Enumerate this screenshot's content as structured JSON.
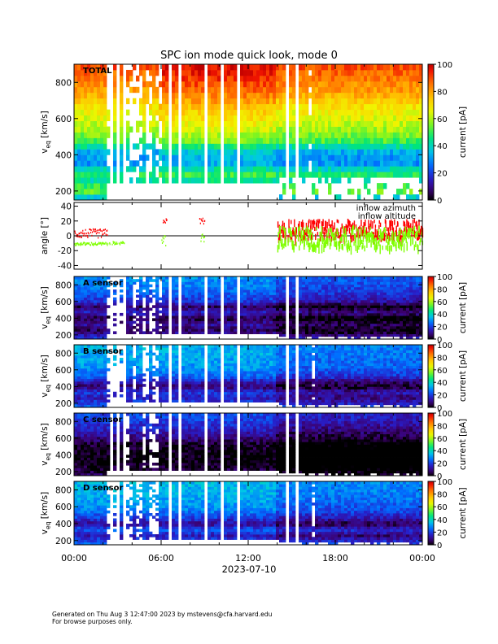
{
  "chart_data": {
    "type": "heatmap",
    "title": "SPC ion mode quick look, mode 0",
    "xlabel": "2023-07-10",
    "x_ticks": [
      "00:00",
      "06:00",
      "12:00",
      "18:00",
      "00:00"
    ],
    "x_range_hours": [
      0,
      24
    ],
    "panels": [
      {
        "name": "TOTAL",
        "kind": "spectrogram",
        "ylabel": "v_eq [km/s]",
        "ylabel_main": "v",
        "ylabel_sub": "eq",
        "ylabel_unit": " [km/s]",
        "ylim": [
          150,
          900
        ],
        "y_ticks": [
          200,
          400,
          600,
          800
        ],
        "colorbar_label": "current [pA]",
        "colorbar_range": [
          0,
          100
        ],
        "colorbar_ticks": [
          0,
          20,
          40,
          60,
          80,
          100
        ],
        "base_bands": [
          [
            150,
            30
          ],
          [
            200,
            55
          ],
          [
            260,
            42
          ],
          [
            290,
            48
          ],
          [
            320,
            40
          ],
          [
            360,
            28
          ],
          [
            420,
            34
          ],
          [
            480,
            52
          ],
          [
            550,
            60
          ],
          [
            650,
            68
          ],
          [
            750,
            80
          ],
          [
            900,
            90
          ]
        ],
        "cutoff_before": {
          "hour": 2.3,
          "vmax": 240
        },
        "cutoff_after": {
          "hour": 14.1,
          "vmax": 290
        }
      },
      {
        "name": "angle",
        "kind": "line",
        "ylabel": "angle [°]",
        "ylim": [
          -45,
          45
        ],
        "y_ticks": [
          -40,
          -20,
          0,
          20,
          40
        ],
        "legend": [
          {
            "label": "inflow azimuth",
            "color": "#ff0000"
          },
          {
            "label": "inflow altitude",
            "color": "#7fff00"
          }
        ],
        "series": [
          {
            "name": "inflow azimuth",
            "color": "#ff0000",
            "segments": [
              [
                0,
                2.3,
                3,
                6
              ],
              [
                6.1,
                6.4,
                20,
                3
              ],
              [
                8.6,
                9.0,
                20,
                4
              ],
              [
                14.0,
                24,
                8,
                12
              ]
            ]
          },
          {
            "name": "inflow altitude",
            "color": "#7fff00",
            "segments": [
              [
                0,
                2.3,
                -11,
                2
              ],
              [
                2.4,
                3.6,
                -10,
                2
              ],
              [
                6.0,
                6.3,
                -8,
                8
              ],
              [
                8.7,
                9.0,
                -4,
                6
              ],
              [
                14.0,
                24,
                -3,
                14
              ]
            ]
          }
        ]
      },
      {
        "name": "A sensor",
        "kind": "spectrogram",
        "ylabel": "v_eq [km/s]",
        "ylabel_main": "v",
        "ylabel_sub": "eq",
        "ylabel_unit": " [km/s]",
        "ylim": [
          150,
          900
        ],
        "y_ticks": [
          200,
          400,
          600,
          800
        ],
        "colorbar_label": "current [pA]",
        "colorbar_range": [
          0,
          100
        ],
        "colorbar_ticks": [
          0,
          20,
          40,
          60,
          80,
          100
        ],
        "base_bands": [
          [
            150,
            22
          ],
          [
            250,
            6
          ],
          [
            330,
            12
          ],
          [
            400,
            4
          ],
          [
            470,
            16
          ],
          [
            540,
            6
          ],
          [
            600,
            18
          ],
          [
            700,
            24
          ],
          [
            800,
            28
          ],
          [
            900,
            30
          ]
        ],
        "cutoff_before": {
          "hour": 2.3,
          "vmax": 200
        },
        "cutoff_after": {
          "hour": 14.1,
          "vmax": 190
        }
      },
      {
        "name": "B sensor",
        "kind": "spectrogram",
        "ylabel": "v_eq [km/s]",
        "ylabel_main": "v",
        "ylabel_sub": "eq",
        "ylabel_unit": " [km/s]",
        "ylim": [
          150,
          900
        ],
        "y_ticks": [
          200,
          400,
          600,
          800
        ],
        "colorbar_label": "current [pA]",
        "colorbar_range": [
          0,
          100
        ],
        "colorbar_ticks": [
          0,
          20,
          40,
          60,
          80,
          100
        ],
        "base_bands": [
          [
            150,
            26
          ],
          [
            270,
            14
          ],
          [
            330,
            20
          ],
          [
            400,
            7
          ],
          [
            460,
            14
          ],
          [
            520,
            24
          ],
          [
            620,
            30
          ],
          [
            750,
            32
          ],
          [
            900,
            34
          ]
        ],
        "cutoff_before": {
          "hour": 2.3,
          "vmax": 200
        },
        "cutoff_after": {
          "hour": 14.1,
          "vmax": 190
        }
      },
      {
        "name": "C sensor",
        "kind": "spectrogram",
        "ylabel": "v_eq [km/s]",
        "ylabel_main": "v",
        "ylabel_sub": "eq",
        "ylabel_unit": " [km/s]",
        "ylim": [
          150,
          900
        ],
        "y_ticks": [
          200,
          400,
          600,
          800
        ],
        "colorbar_label": "current [pA]",
        "colorbar_range": [
          0,
          100
        ],
        "colorbar_ticks": [
          0,
          20,
          40,
          60,
          80,
          100
        ],
        "base_bands": [
          [
            150,
            8
          ],
          [
            250,
            2
          ],
          [
            350,
            0
          ],
          [
            450,
            1
          ],
          [
            540,
            4
          ],
          [
            620,
            10
          ],
          [
            720,
            16
          ],
          [
            820,
            20
          ],
          [
            900,
            22
          ]
        ],
        "cutoff_before": {
          "hour": 2.3,
          "vmax": 200
        },
        "cutoff_after": {
          "hour": 14.1,
          "vmax": 190
        }
      },
      {
        "name": "D sensor",
        "kind": "spectrogram",
        "ylabel": "v_eq [km/s]",
        "ylabel_main": "v",
        "ylabel_sub": "eq",
        "ylabel_unit": " [km/s]",
        "ylim": [
          150,
          900
        ],
        "y_ticks": [
          200,
          400,
          600,
          800
        ],
        "colorbar_label": "current [pA]",
        "colorbar_range": [
          0,
          100
        ],
        "colorbar_ticks": [
          0,
          20,
          40,
          60,
          80,
          100
        ],
        "base_bands": [
          [
            150,
            28
          ],
          [
            260,
            14
          ],
          [
            330,
            24
          ],
          [
            400,
            10
          ],
          [
            470,
            20
          ],
          [
            560,
            28
          ],
          [
            680,
            32
          ],
          [
            800,
            34
          ],
          [
            900,
            34
          ]
        ],
        "cutoff_before": {
          "hour": 2.3,
          "vmax": 200
        },
        "cutoff_after": {
          "hour": 14.1,
          "vmax": 190
        }
      }
    ],
    "data_gaps_hours": [
      [
        2.45,
        2.6
      ],
      [
        2.95,
        3.05
      ],
      [
        3.45,
        3.6
      ],
      [
        4.6,
        4.7
      ],
      [
        5.5,
        5.65
      ],
      [
        6.55,
        6.7
      ],
      [
        7.15,
        7.3
      ],
      [
        7.8,
        7.95
      ],
      [
        9.0,
        9.15
      ],
      [
        9.55,
        9.7
      ],
      [
        10.2,
        10.35
      ],
      [
        11.3,
        11.45
      ],
      [
        14.55,
        14.7
      ],
      [
        15.3,
        15.4
      ]
    ]
  },
  "footer": {
    "line1": "Generated on Thu Aug  3 12:47:00 2023 by mstevens@cfa.harvard.edu",
    "line2": "For browse purposes only."
  }
}
